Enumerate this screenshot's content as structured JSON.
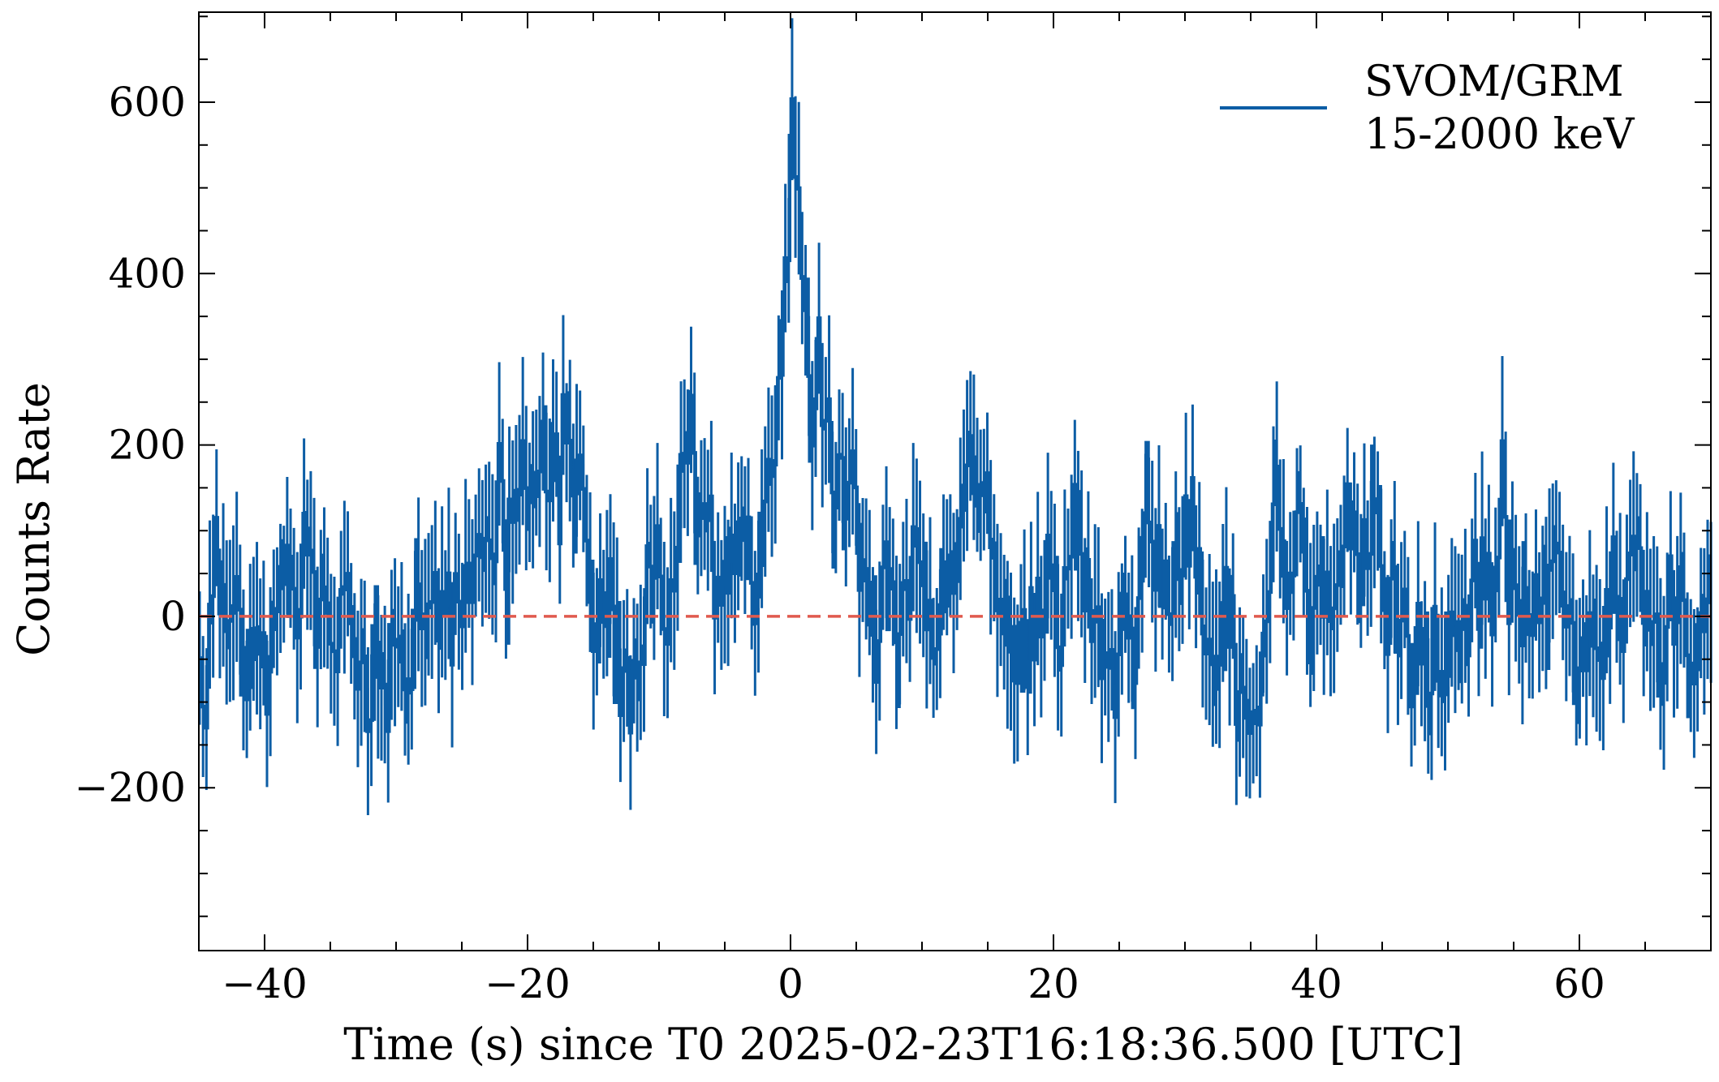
{
  "chart_data": {
    "type": "line",
    "style": "step-with-error-bars",
    "xlabel": "Time (s) since T0 2025-02-23T16:18:36.500 [UTC]",
    "ylabel": "Counts Rate",
    "xlim": [
      -45,
      70
    ],
    "ylim": [
      -390,
      705
    ],
    "x_ticks": [
      -40,
      -20,
      0,
      20,
      40,
      60
    ],
    "x_tick_labels": [
      "−40",
      "−20",
      "0",
      "20",
      "40",
      "60"
    ],
    "x_minor_step": 5,
    "y_ticks": [
      -200,
      0,
      200,
      400,
      600
    ],
    "y_tick_labels": [
      "−200",
      "0",
      "200",
      "400",
      "600"
    ],
    "y_minor_step": 50,
    "grid": false,
    "legend_position": "top-right",
    "colors": {
      "series": "#0c5da5",
      "baseline": "#e05a4e"
    },
    "baseline": {
      "y": 0,
      "style": "dashed"
    },
    "bin_width_s": 0.128,
    "approx_error_s": 85,
    "series": [
      {
        "name": "SVOM/GRM\n15-2000 keV",
        "legend_lines": [
          "SVOM/GRM",
          "15-2000 keV"
        ],
        "key_points": [
          {
            "x": -45,
            "y": -50
          },
          {
            "x": -42,
            "y": 10
          },
          {
            "x": -38,
            "y": 40
          },
          {
            "x": -35,
            "y": 20
          },
          {
            "x": -31,
            "y": -60
          },
          {
            "x": -28,
            "y": 10
          },
          {
            "x": -25,
            "y": 30
          },
          {
            "x": -23,
            "y": 120
          },
          {
            "x": -20,
            "y": 140
          },
          {
            "x": -17,
            "y": 170
          },
          {
            "x": -15,
            "y": 40
          },
          {
            "x": -13,
            "y": -70
          },
          {
            "x": -11,
            "y": 10
          },
          {
            "x": -9,
            "y": 60
          },
          {
            "x": -8,
            "y": 180
          },
          {
            "x": -6,
            "y": 40
          },
          {
            "x": -4,
            "y": 30
          },
          {
            "x": -2,
            "y": 60
          },
          {
            "x": -1,
            "y": 280
          },
          {
            "x": -0.4,
            "y": 380
          },
          {
            "x": 0,
            "y": 520
          },
          {
            "x": 0.6,
            "y": 420
          },
          {
            "x": 1.5,
            "y": 340
          },
          {
            "x": 2.5,
            "y": 230
          },
          {
            "x": 4,
            "y": 120
          },
          {
            "x": 6,
            "y": 30
          },
          {
            "x": 9,
            "y": 20
          },
          {
            "x": 12,
            "y": 30
          },
          {
            "x": 14,
            "y": 170
          },
          {
            "x": 16,
            "y": 60
          },
          {
            "x": 18,
            "y": -60
          },
          {
            "x": 20,
            "y": 30
          },
          {
            "x": 22,
            "y": 90
          },
          {
            "x": 24,
            "y": 0
          },
          {
            "x": 26,
            "y": 10
          },
          {
            "x": 28,
            "y": 60
          },
          {
            "x": 30,
            "y": 70
          },
          {
            "x": 32,
            "y": -20
          },
          {
            "x": 35,
            "y": -120
          },
          {
            "x": 37,
            "y": 110
          },
          {
            "x": 40,
            "y": 60
          },
          {
            "x": 42,
            "y": 90
          },
          {
            "x": 45,
            "y": 40
          },
          {
            "x": 48,
            "y": -60
          },
          {
            "x": 50,
            "y": -50
          },
          {
            "x": 52,
            "y": 30
          },
          {
            "x": 55,
            "y": 80
          },
          {
            "x": 58,
            "y": 50
          },
          {
            "x": 60,
            "y": -40
          },
          {
            "x": 62,
            "y": 10
          },
          {
            "x": 65,
            "y": 20
          },
          {
            "x": 68,
            "y": -30
          },
          {
            "x": 70,
            "y": 60
          }
        ]
      }
    ]
  }
}
